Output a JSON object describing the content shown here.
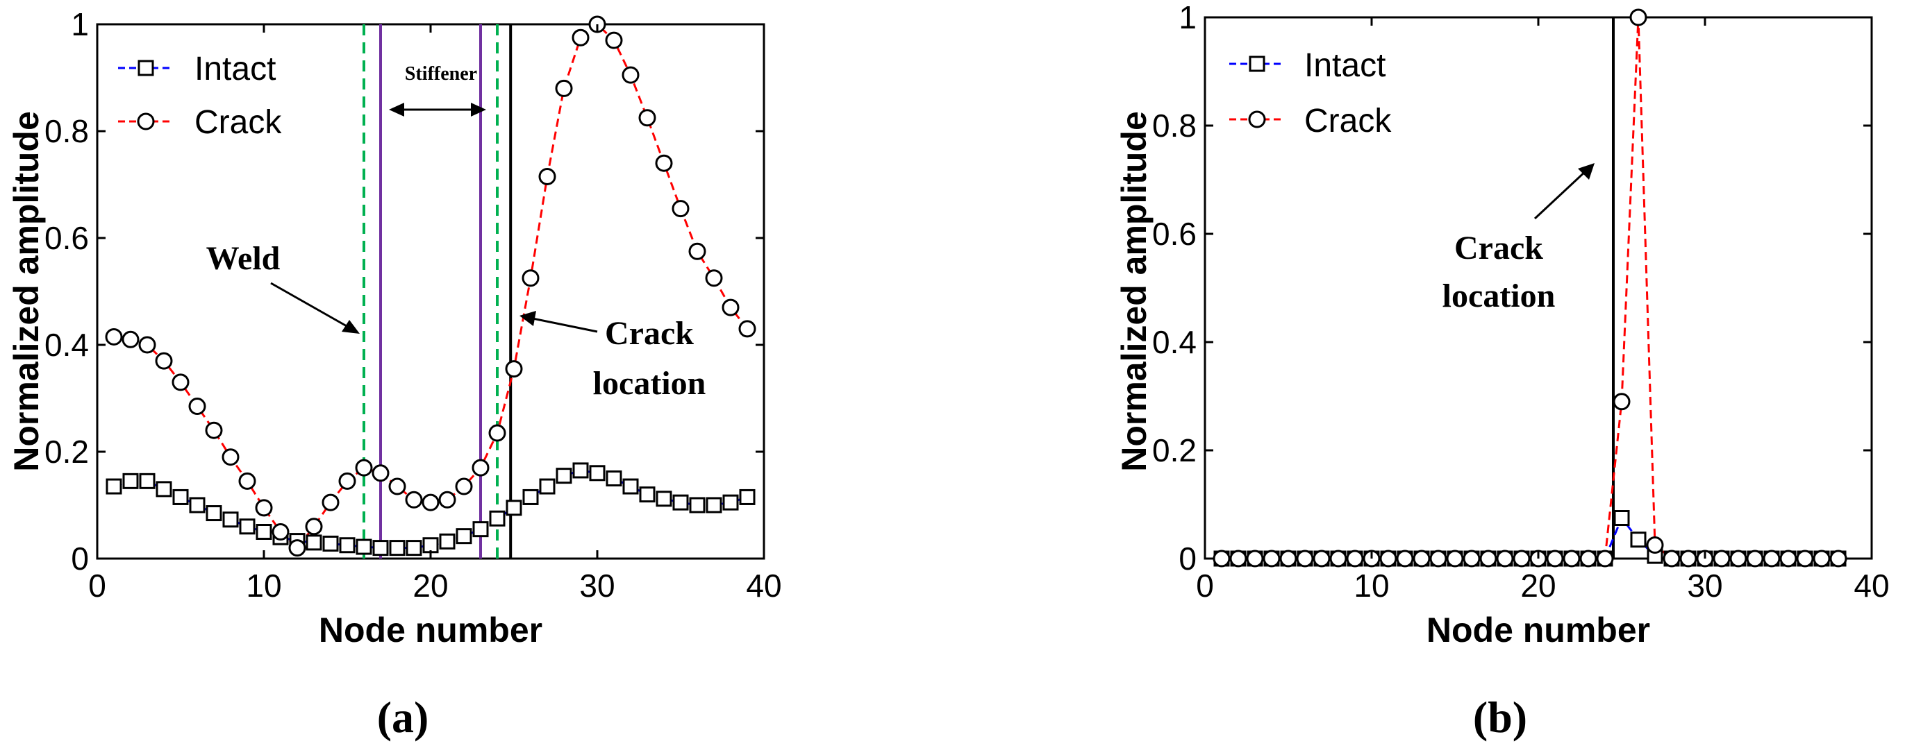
{
  "chart_data": [
    {
      "type": "line",
      "xlabel": "Node number",
      "ylabel": "Normalized amplitude",
      "xlim": [
        0,
        40
      ],
      "ylim": [
        0,
        1
      ],
      "xticks": [
        "0",
        "10",
        "20",
        "30",
        "40"
      ],
      "yticks": [
        "0",
        "0.2",
        "0.4",
        "0.6",
        "0.8",
        "1"
      ],
      "legend": [
        "Intact",
        "Crack"
      ],
      "legend_position": "top-left",
      "colors": {
        "intact": "#0000ff",
        "crack": "#ff0000",
        "weld": "#00b050",
        "stiffener": "#7030a0",
        "crack_line": "#000000"
      },
      "x": [
        1,
        2,
        3,
        4,
        5,
        6,
        7,
        8,
        9,
        10,
        11,
        12,
        13,
        14,
        15,
        16,
        17,
        18,
        19,
        20,
        21,
        22,
        23,
        24,
        25,
        26,
        27,
        28,
        29,
        30,
        31,
        32,
        33,
        34,
        35,
        36,
        37,
        38,
        39
      ],
      "series": [
        {
          "name": "Intact",
          "marker": "square",
          "values": [
            0.135,
            0.145,
            0.145,
            0.13,
            0.115,
            0.1,
            0.085,
            0.073,
            0.06,
            0.05,
            0.04,
            0.033,
            0.03,
            0.028,
            0.025,
            0.022,
            0.02,
            0.02,
            0.02,
            0.025,
            0.032,
            0.042,
            0.055,
            0.075,
            0.095,
            0.115,
            0.135,
            0.155,
            0.165,
            0.16,
            0.15,
            0.135,
            0.12,
            0.112,
            0.105,
            0.1,
            0.1,
            0.105,
            0.115
          ]
        },
        {
          "name": "Crack",
          "marker": "circle",
          "values": [
            0.415,
            0.41,
            0.4,
            0.37,
            0.33,
            0.285,
            0.24,
            0.19,
            0.145,
            0.095,
            0.05,
            0.02,
            0.06,
            0.105,
            0.145,
            0.17,
            0.16,
            0.135,
            0.11,
            0.105,
            0.11,
            0.135,
            0.17,
            0.235,
            0.355,
            0.525,
            0.715,
            0.88,
            0.975,
            1.0,
            0.97,
            0.905,
            0.825,
            0.74,
            0.655,
            0.575,
            0.525,
            0.47,
            0.43
          ]
        }
      ],
      "vlines": [
        {
          "x": 16.0,
          "style": "weld"
        },
        {
          "x": 24.0,
          "style": "weld"
        },
        {
          "x": 17.0,
          "style": "stiffener"
        },
        {
          "x": 23.0,
          "style": "stiffener"
        },
        {
          "x": 24.8,
          "style": "crack_line"
        }
      ],
      "annotations": {
        "weld": "Weld",
        "stiffener": "Stiffener",
        "crack_line1": "Crack",
        "crack_line2": "location"
      },
      "panel_label": "(a)"
    },
    {
      "type": "line",
      "xlabel": "Node number",
      "ylabel": "Normalized amplitude",
      "xlim": [
        0,
        40
      ],
      "ylim": [
        0,
        1
      ],
      "xticks": [
        "0",
        "10",
        "20",
        "30",
        "40"
      ],
      "yticks": [
        "0",
        "0.2",
        "0.4",
        "0.6",
        "0.8",
        "1"
      ],
      "legend": [
        "Intact",
        "Crack"
      ],
      "legend_position": "top-left",
      "colors": {
        "intact": "#0000ff",
        "crack": "#ff0000",
        "crack_line": "#000000"
      },
      "x": [
        1,
        2,
        3,
        4,
        5,
        6,
        7,
        8,
        9,
        10,
        11,
        12,
        13,
        14,
        15,
        16,
        17,
        18,
        19,
        20,
        21,
        22,
        23,
        24,
        25,
        26,
        27,
        28,
        29,
        30,
        31,
        32,
        33,
        34,
        35,
        36,
        37,
        38
      ],
      "series": [
        {
          "name": "Intact",
          "marker": "square",
          "values": [
            0,
            0,
            0,
            0,
            0,
            0,
            0,
            0,
            0,
            0,
            0,
            0,
            0,
            0,
            0,
            0,
            0,
            0,
            0,
            0,
            0,
            0,
            0,
            0,
            0.075,
            0.035,
            0.005,
            0,
            0,
            0,
            0,
            0,
            0,
            0,
            0,
            0,
            0,
            0
          ]
        },
        {
          "name": "Crack",
          "marker": "circle",
          "values": [
            0,
            0,
            0,
            0,
            0,
            0,
            0,
            0,
            0,
            0,
            0,
            0,
            0,
            0,
            0,
            0,
            0,
            0,
            0,
            0,
            0,
            0,
            0,
            0,
            0.29,
            1.0,
            0.025,
            0,
            0,
            0,
            0,
            0,
            0,
            0,
            0,
            0,
            0,
            0
          ]
        }
      ],
      "vlines": [
        {
          "x": 24.5,
          "style": "crack_line"
        }
      ],
      "annotations": {
        "crack_line1": "Crack",
        "crack_line2": "location"
      },
      "panel_label": "(b)"
    }
  ]
}
